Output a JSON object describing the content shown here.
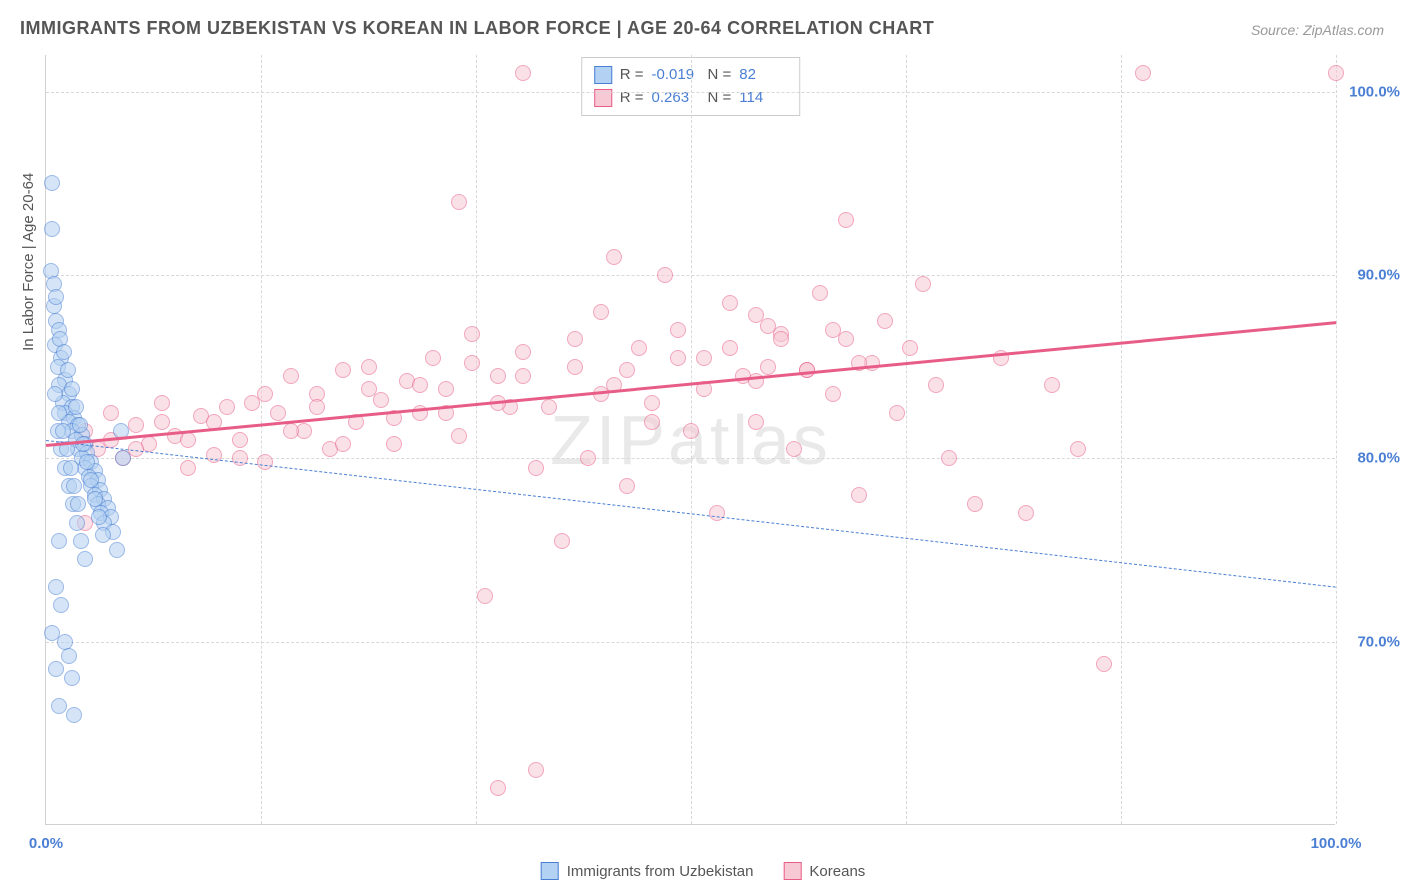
{
  "title": "IMMIGRANTS FROM UZBEKISTAN VS KOREAN IN LABOR FORCE | AGE 20-64 CORRELATION CHART",
  "source": "Source: ZipAtlas.com",
  "watermark": "ZIPatlas",
  "y_axis_label": "In Labor Force | Age 20-64",
  "chart": {
    "type": "scatter",
    "background_color": "#ffffff",
    "grid_color": "#d8d8d8",
    "axis_color": "#d0d0d0",
    "text_color": "#555555",
    "tick_label_color": "#4a7fd4",
    "xlim": [
      0,
      100
    ],
    "ylim": [
      60,
      102
    ],
    "x_ticks": [
      0,
      16.67,
      33.33,
      50,
      66.67,
      83.33,
      100
    ],
    "x_tick_labels": [
      "0.0%",
      "",
      "",
      "",
      "",
      "",
      "100.0%"
    ],
    "y_ticks": [
      70,
      80,
      90,
      100
    ],
    "y_tick_labels": [
      "70.0%",
      "80.0%",
      "90.0%",
      "100.0%"
    ],
    "marker_radius": 8,
    "marker_stroke_width": 1.5,
    "series": [
      {
        "name": "Immigrants from Uzbekistan",
        "fill_color": "#b3d1f2",
        "stroke_color": "#4a7fd4",
        "fill_opacity": 0.55,
        "R": "-0.019",
        "N": "82",
        "trend": {
          "x1": 0,
          "y1": 81.0,
          "x2": 100,
          "y2": 73.0,
          "style": "dashed",
          "color": "#4a7fd4",
          "width": 1.5
        },
        "points": [
          [
            0.5,
            95.0
          ],
          [
            0.5,
            92.5
          ],
          [
            0.4,
            90.2
          ],
          [
            0.6,
            88.3
          ],
          [
            0.8,
            87.5
          ],
          [
            1.0,
            87.0
          ],
          [
            0.7,
            86.2
          ],
          [
            1.2,
            85.5
          ],
          [
            0.9,
            85.0
          ],
          [
            1.5,
            84.3
          ],
          [
            1.0,
            84.0
          ],
          [
            1.8,
            83.5
          ],
          [
            1.3,
            83.0
          ],
          [
            2.0,
            82.8
          ],
          [
            1.5,
            82.5
          ],
          [
            2.2,
            82.2
          ],
          [
            1.8,
            82.0
          ],
          [
            2.5,
            81.8
          ],
          [
            2.0,
            81.5
          ],
          [
            2.8,
            81.3
          ],
          [
            2.3,
            81.0
          ],
          [
            3.0,
            80.8
          ],
          [
            2.5,
            80.5
          ],
          [
            3.2,
            80.3
          ],
          [
            2.8,
            80.0
          ],
          [
            3.5,
            79.8
          ],
          [
            3.0,
            79.5
          ],
          [
            3.8,
            79.3
          ],
          [
            3.3,
            79.0
          ],
          [
            4.0,
            78.8
          ],
          [
            3.5,
            78.5
          ],
          [
            4.2,
            78.3
          ],
          [
            3.8,
            78.0
          ],
          [
            4.5,
            77.8
          ],
          [
            4.0,
            77.5
          ],
          [
            4.8,
            77.3
          ],
          [
            4.3,
            77.0
          ],
          [
            5.0,
            76.8
          ],
          [
            4.5,
            76.5
          ],
          [
            5.2,
            76.0
          ],
          [
            1.0,
            75.5
          ],
          [
            5.5,
            75.0
          ],
          [
            0.8,
            73.0
          ],
          [
            1.2,
            72.0
          ],
          [
            0.5,
            70.5
          ],
          [
            1.5,
            70.0
          ],
          [
            1.8,
            69.2
          ],
          [
            0.8,
            68.5
          ],
          [
            2.0,
            68.0
          ],
          [
            1.0,
            66.5
          ],
          [
            2.2,
            66.0
          ],
          [
            0.6,
            89.5
          ],
          [
            0.8,
            88.8
          ],
          [
            1.1,
            86.5
          ],
          [
            1.4,
            85.8
          ],
          [
            1.7,
            84.8
          ],
          [
            2.0,
            83.8
          ],
          [
            2.3,
            82.8
          ],
          [
            2.6,
            81.8
          ],
          [
            2.9,
            80.8
          ],
          [
            3.2,
            79.8
          ],
          [
            3.5,
            78.8
          ],
          [
            3.8,
            77.8
          ],
          [
            4.1,
            76.8
          ],
          [
            4.4,
            75.8
          ],
          [
            0.9,
            81.5
          ],
          [
            1.2,
            80.5
          ],
          [
            1.5,
            79.5
          ],
          [
            1.8,
            78.5
          ],
          [
            2.1,
            77.5
          ],
          [
            2.4,
            76.5
          ],
          [
            2.7,
            75.5
          ],
          [
            3.0,
            74.5
          ],
          [
            0.7,
            83.5
          ],
          [
            1.0,
            82.5
          ],
          [
            1.3,
            81.5
          ],
          [
            1.6,
            80.5
          ],
          [
            1.9,
            79.5
          ],
          [
            2.2,
            78.5
          ],
          [
            2.5,
            77.5
          ],
          [
            5.8,
            81.5
          ],
          [
            6.0,
            80.0
          ]
        ]
      },
      {
        "name": "Koreans",
        "fill_color": "#f7c9d4",
        "stroke_color": "#e85d88",
        "fill_opacity": 0.55,
        "R": "0.263",
        "N": "114",
        "trend": {
          "x1": 0,
          "y1": 80.8,
          "x2": 100,
          "y2": 87.5,
          "style": "solid",
          "color": "#e85d88",
          "width": 2.5
        },
        "points": [
          [
            3.0,
            81.5
          ],
          [
            4.0,
            80.5
          ],
          [
            5.0,
            81.0
          ],
          [
            6.0,
            80.0
          ],
          [
            7.0,
            81.8
          ],
          [
            8.0,
            80.8
          ],
          [
            9.0,
            82.0
          ],
          [
            10.0,
            81.2
          ],
          [
            11.0,
            79.5
          ],
          [
            12.0,
            82.3
          ],
          [
            13.0,
            80.2
          ],
          [
            14.0,
            82.8
          ],
          [
            15.0,
            81.0
          ],
          [
            16.0,
            83.0
          ],
          [
            17.0,
            79.8
          ],
          [
            18.0,
            82.5
          ],
          [
            19.0,
            84.5
          ],
          [
            20.0,
            81.5
          ],
          [
            21.0,
            83.5
          ],
          [
            22.0,
            80.5
          ],
          [
            23.0,
            84.8
          ],
          [
            24.0,
            82.0
          ],
          [
            25.0,
            85.0
          ],
          [
            26.0,
            83.2
          ],
          [
            27.0,
            80.8
          ],
          [
            28.0,
            84.2
          ],
          [
            29.0,
            82.5
          ],
          [
            30.0,
            85.5
          ],
          [
            31.0,
            83.8
          ],
          [
            32.0,
            81.2
          ],
          [
            32.0,
            94.0
          ],
          [
            33.0,
            86.8
          ],
          [
            34.0,
            72.5
          ],
          [
            35.0,
            84.5
          ],
          [
            35.0,
            62.0
          ],
          [
            36.0,
            82.8
          ],
          [
            37.0,
            85.8
          ],
          [
            38.0,
            79.5
          ],
          [
            38.0,
            63.0
          ],
          [
            40.0,
            75.5
          ],
          [
            41.0,
            86.5
          ],
          [
            42.0,
            80.0
          ],
          [
            43.0,
            88.0
          ],
          [
            44.0,
            84.0
          ],
          [
            44.0,
            91.0
          ],
          [
            45.0,
            78.5
          ],
          [
            46.0,
            86.0
          ],
          [
            47.0,
            83.0
          ],
          [
            48.0,
            90.0
          ],
          [
            49.0,
            87.0
          ],
          [
            50.0,
            81.5
          ],
          [
            51.0,
            85.5
          ],
          [
            52.0,
            77.0
          ],
          [
            53.0,
            88.5
          ],
          [
            54.0,
            84.5
          ],
          [
            55.0,
            82.0
          ],
          [
            55.0,
            87.8
          ],
          [
            56.0,
            85.0
          ],
          [
            56.0,
            87.2
          ],
          [
            57.0,
            86.8
          ],
          [
            58.0,
            80.5
          ],
          [
            59.0,
            84.8
          ],
          [
            60.0,
            89.0
          ],
          [
            61.0,
            83.5
          ],
          [
            62.0,
            86.5
          ],
          [
            62.0,
            93.0
          ],
          [
            63.0,
            78.0
          ],
          [
            64.0,
            85.2
          ],
          [
            65.0,
            87.5
          ],
          [
            66.0,
            82.5
          ],
          [
            67.0,
            86.0
          ],
          [
            68.0,
            89.5
          ],
          [
            69.0,
            84.0
          ],
          [
            70.0,
            80.0
          ],
          [
            72.0,
            77.5
          ],
          [
            74.0,
            85.5
          ],
          [
            76.0,
            77.0
          ],
          [
            78.0,
            84.0
          ],
          [
            80.0,
            80.5
          ],
          [
            82.0,
            68.8
          ],
          [
            85.0,
            101.0
          ],
          [
            100.0,
            101.0
          ],
          [
            5.0,
            82.5
          ],
          [
            7.0,
            80.5
          ],
          [
            9.0,
            83.0
          ],
          [
            11.0,
            81.0
          ],
          [
            13.0,
            82.0
          ],
          [
            15.0,
            80.0
          ],
          [
            17.0,
            83.5
          ],
          [
            19.0,
            81.5
          ],
          [
            21.0,
            82.8
          ],
          [
            23.0,
            80.8
          ],
          [
            25.0,
            83.8
          ],
          [
            27.0,
            82.2
          ],
          [
            29.0,
            84.0
          ],
          [
            31.0,
            82.5
          ],
          [
            33.0,
            85.2
          ],
          [
            35.0,
            83.0
          ],
          [
            37.0,
            84.5
          ],
          [
            39.0,
            82.8
          ],
          [
            41.0,
            85.0
          ],
          [
            43.0,
            83.5
          ],
          [
            45.0,
            84.8
          ],
          [
            47.0,
            82.0
          ],
          [
            49.0,
            85.5
          ],
          [
            51.0,
            83.8
          ],
          [
            53.0,
            86.0
          ],
          [
            55.0,
            84.2
          ],
          [
            57.0,
            86.5
          ],
          [
            59.0,
            84.8
          ],
          [
            61.0,
            87.0
          ],
          [
            63.0,
            85.2
          ],
          [
            37.0,
            101.0
          ],
          [
            3.0,
            76.5
          ]
        ]
      }
    ]
  },
  "bottom_legend": [
    {
      "swatch_fill": "#b3d1f2",
      "swatch_stroke": "#4a7fd4",
      "label": "Immigrants from Uzbekistan"
    },
    {
      "swatch_fill": "#f7c9d4",
      "swatch_stroke": "#e85d88",
      "label": "Koreans"
    }
  ]
}
